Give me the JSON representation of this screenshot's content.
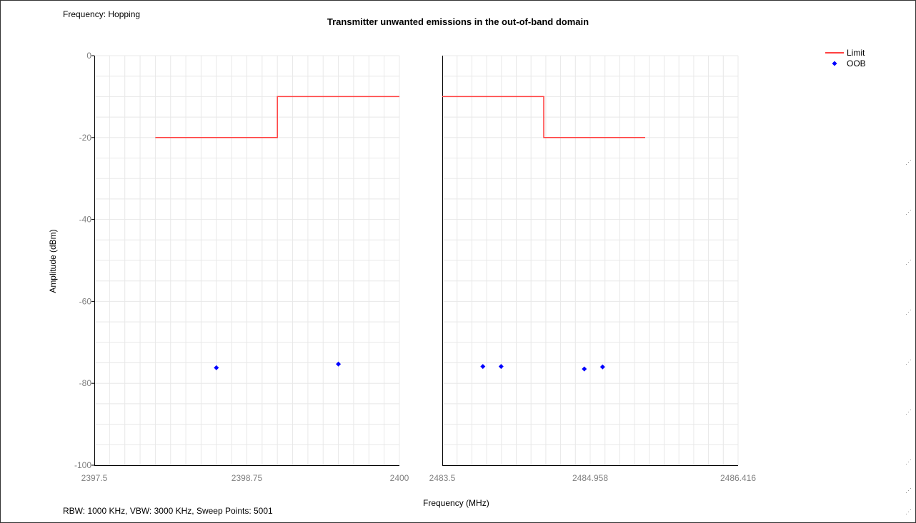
{
  "frequency_mode": "Frequency: Hopping",
  "sweep_info": "RBW: 1000 KHz,  VBW: 3000 KHz,  Sweep Points: 5001",
  "colors": {
    "limit": "#ff4040",
    "oob": "#0000ff",
    "grid": "#e8e8e8",
    "tick_text": "#808080"
  },
  "chart_data": {
    "type": "scatter",
    "title": "Transmitter unwanted emissions in the out-of-band domain",
    "xlabel": "Frequency (MHz)",
    "ylabel": "Amplitude (dBm)",
    "ylim": [
      -100,
      0
    ],
    "yticks": [
      0,
      -20,
      -40,
      -60,
      -80,
      -100
    ],
    "ytick_labels": [
      "0",
      "-20",
      "-40",
      "-60",
      "-80",
      "-100"
    ],
    "grid": true,
    "legend_position": "top-right",
    "panels": [
      {
        "name": "lower",
        "xlim": [
          2397.5,
          2400
        ],
        "xticks": [
          2397.5,
          2398.75,
          2400
        ],
        "xtick_labels": [
          "2397.5",
          "2398.75",
          "2400"
        ]
      },
      {
        "name": "upper",
        "xlim": [
          2483.5,
          2486.416
        ],
        "xticks": [
          2483.5,
          2484.958,
          2486.416
        ],
        "xtick_labels": [
          "2483.5",
          "2484.958",
          "2486.416"
        ]
      }
    ],
    "series": [
      {
        "name": "Limit",
        "type": "line",
        "segments": [
          {
            "panel": 0,
            "points": [
              [
                2398.0,
                -20
              ],
              [
                2399.0,
                -20
              ],
              [
                2399.0,
                -10
              ],
              [
                2400.0,
                -10
              ]
            ]
          },
          {
            "panel": 1,
            "points": [
              [
                2483.5,
                -10
              ],
              [
                2484.5,
                -10
              ],
              [
                2484.5,
                -20
              ],
              [
                2485.5,
                -20
              ]
            ]
          }
        ]
      },
      {
        "name": "OOB",
        "type": "scatter",
        "points": [
          {
            "panel": 0,
            "x": 2398.5,
            "y": -76.2
          },
          {
            "panel": 0,
            "x": 2399.5,
            "y": -75.3
          },
          {
            "panel": 1,
            "x": 2483.9,
            "y": -75.9
          },
          {
            "panel": 1,
            "x": 2484.08,
            "y": -75.9
          },
          {
            "panel": 1,
            "x": 2484.9,
            "y": -76.5
          },
          {
            "panel": 1,
            "x": 2485.08,
            "y": -76.0
          }
        ]
      }
    ]
  }
}
